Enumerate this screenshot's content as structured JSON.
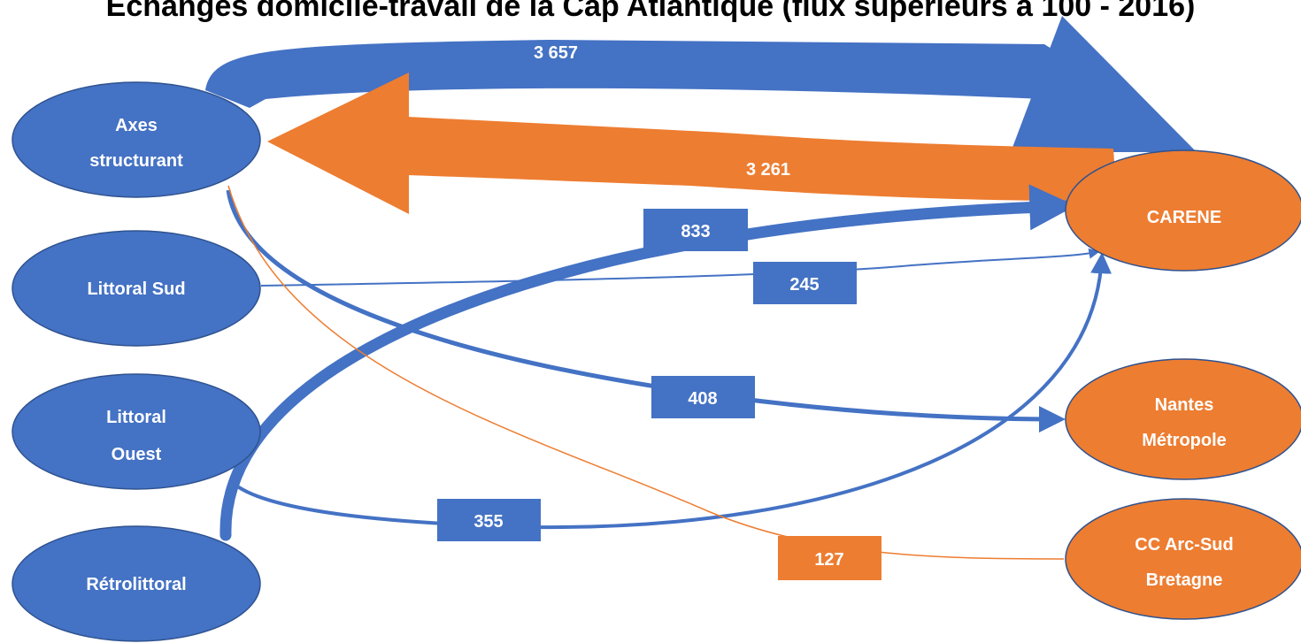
{
  "title": "Échanges domicile-travail de la Cap Atlantique (flux supérieurs à 100 - 2016)",
  "colors": {
    "zone_internal": "#4472C4",
    "zone_external": "#ED7D31",
    "flow_outgoing": "#4472C4",
    "flow_incoming": "#ED7D31",
    "node_text": "#ffffff"
  },
  "nodes": {
    "axes": {
      "lines": [
        "Axes",
        "structurant"
      ]
    },
    "littoral_sud": {
      "lines": [
        "Littoral Sud"
      ]
    },
    "littoral_ouest": {
      "lines": [
        "Littoral",
        "Ouest"
      ]
    },
    "retrolittoral": {
      "lines": [
        "Rétrolittoral"
      ]
    },
    "carene": {
      "lines": [
        "CARENE"
      ]
    },
    "nantes": {
      "lines": [
        "Nantes",
        "Métropole"
      ]
    },
    "cc_arc_sud": {
      "lines": [
        "CC Arc-Sud",
        "Bretagne"
      ]
    }
  },
  "flows": {
    "axes_carene": {
      "value": "3 657"
    },
    "carene_axes": {
      "value": "3 261"
    },
    "retro_carene": {
      "value": "833"
    },
    "sud_carene": {
      "value": "245"
    },
    "axes_nantes": {
      "value": "408"
    },
    "ouest_carene": {
      "value": "355"
    },
    "arcsud_axes": {
      "value": "127"
    }
  }
}
